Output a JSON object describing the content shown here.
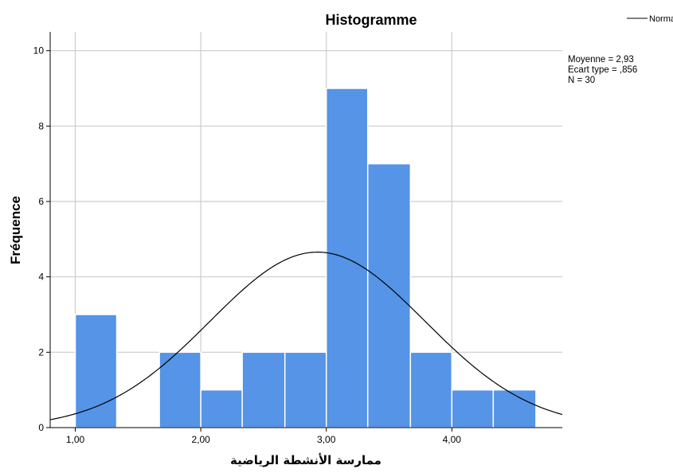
{
  "chart_data": {
    "type": "bar",
    "title": "Histogramme",
    "xlabel": "ممارسة الأنشطة الرياضية",
    "ylabel": "Fréquence",
    "xlim": [
      0.8,
      4.88
    ],
    "ylim": [
      0,
      10.5
    ],
    "x_ticks": [
      {
        "value": 1,
        "label": "1,00"
      },
      {
        "value": 2,
        "label": "2,00"
      },
      {
        "value": 3,
        "label": "3,00"
      },
      {
        "value": 4,
        "label": "4,00"
      }
    ],
    "y_ticks": [
      {
        "value": 0,
        "label": "0"
      },
      {
        "value": 2,
        "label": "2"
      },
      {
        "value": 4,
        "label": "4"
      },
      {
        "value": 6,
        "label": "6"
      },
      {
        "value": 8,
        "label": "8"
      },
      {
        "value": 10,
        "label": "10"
      }
    ],
    "grid": true,
    "bins": [
      {
        "x0": 1.0,
        "x1": 1.33,
        "count": 3
      },
      {
        "x0": 1.33,
        "x1": 1.67,
        "count": 0
      },
      {
        "x0": 1.67,
        "x1": 2.0,
        "count": 2
      },
      {
        "x0": 2.0,
        "x1": 2.33,
        "count": 1
      },
      {
        "x0": 2.33,
        "x1": 2.67,
        "count": 2
      },
      {
        "x0": 2.67,
        "x1": 3.0,
        "count": 2
      },
      {
        "x0": 3.0,
        "x1": 3.33,
        "count": 9
      },
      {
        "x0": 3.33,
        "x1": 3.67,
        "count": 7
      },
      {
        "x0": 3.67,
        "x1": 4.0,
        "count": 2
      },
      {
        "x0": 4.0,
        "x1": 4.33,
        "count": 1
      },
      {
        "x0": 4.33,
        "x1": 4.67,
        "count": 1
      }
    ],
    "normal_curve": {
      "legend_label": "Normal",
      "mean": 2.93,
      "sd": 0.856,
      "n": 30,
      "bin_width": 0.333
    },
    "stats": {
      "mean_text": "Moyenne = 2,93",
      "sd_text": "Ecart type = ,856",
      "n_text": "N = 30"
    },
    "legend_placement": "top-right",
    "colors": {
      "bar_fill": "#5594e6",
      "bar_stroke": "#ffffff",
      "grid": "#cccccc",
      "curve": "#000000",
      "axis": "#000000"
    }
  }
}
